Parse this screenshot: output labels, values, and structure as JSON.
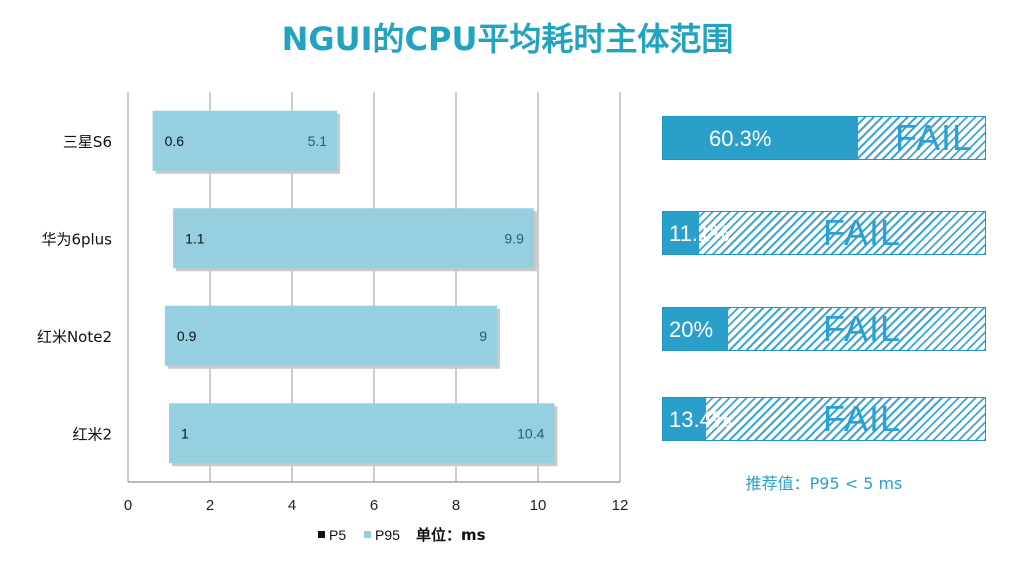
{
  "title": "NGUI的CPU平均耗时主体范围",
  "chart_data": {
    "type": "bar",
    "orientation": "horizontal-floating",
    "categories": [
      "三星S6",
      "华为6plus",
      "红米Note2",
      "红米2"
    ],
    "series": [
      {
        "name": "P5",
        "values": [
          0.6,
          1.1,
          0.9,
          1
        ]
      },
      {
        "name": "P95",
        "values": [
          5.1,
          9.9,
          9,
          10.4
        ]
      }
    ],
    "xlim": [
      0,
      12
    ],
    "xticks": [
      0,
      2,
      4,
      6,
      8,
      10,
      12
    ],
    "grid": true,
    "legend_position": "bottom",
    "unit_label": "单位：ms",
    "colors": {
      "p5": "#111111",
      "p95": "#95cfe0",
      "title": "#22a3c0"
    }
  },
  "pass_rates": [
    {
      "device": "三星S6",
      "percent": 60.3,
      "label": "60.3%",
      "status": "FAIL"
    },
    {
      "device": "华为6plus",
      "percent": 11.1,
      "label": "11.1%",
      "status": "FAIL"
    },
    {
      "device": "红米Note2",
      "percent": 20,
      "label": "20%",
      "status": "FAIL"
    },
    {
      "device": "红米2",
      "percent": 13.4,
      "label": "13.4%",
      "status": "FAIL"
    }
  ],
  "recommendation": "推荐值：P95 < 5 ms"
}
